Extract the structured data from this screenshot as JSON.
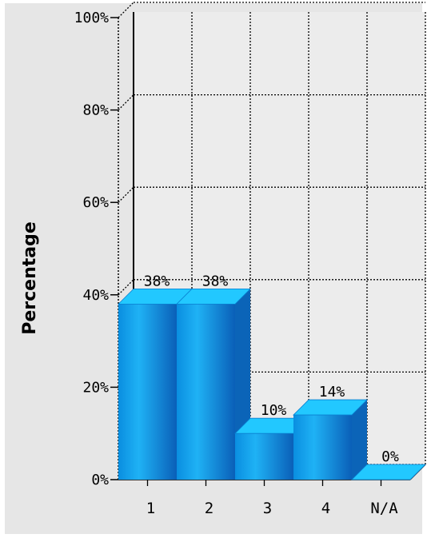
{
  "chart_data": {
    "type": "bar",
    "title": "",
    "xlabel": "",
    "ylabel": "Percentage",
    "categories": [
      "1",
      "2",
      "3",
      "4",
      "N/A"
    ],
    "values": [
      38,
      38,
      10,
      14,
      0
    ],
    "data_labels": [
      "38%",
      "38%",
      "10%",
      "14%",
      "0%"
    ],
    "y_ticks": [
      0,
      20,
      40,
      60,
      80,
      100
    ],
    "y_tick_labels": [
      "0%",
      "20%",
      "40%",
      "60%",
      "80%",
      "100%"
    ],
    "ylim": [
      0,
      100
    ],
    "grid": true,
    "style": "3d",
    "colors": {
      "bar_front": "#1aa8f0",
      "bar_front_dark": "#0a5fb8",
      "bar_top": "#22c8ff",
      "bar_side": "#0b64b8",
      "background": "#e6e6e6",
      "plot_back": "#ececec"
    }
  }
}
